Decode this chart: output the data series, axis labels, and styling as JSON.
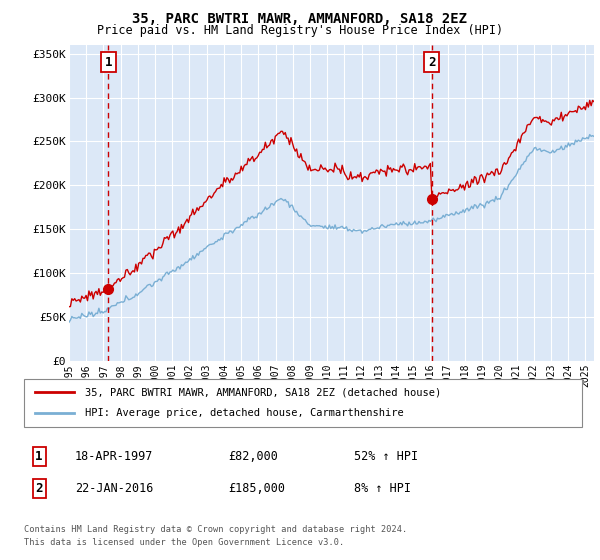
{
  "title": "35, PARC BWTRI MAWR, AMMANFORD, SA18 2EZ",
  "subtitle": "Price paid vs. HM Land Registry's House Price Index (HPI)",
  "ylim": [
    0,
    360000
  ],
  "xlim_start": 1995.0,
  "xlim_end": 2025.5,
  "yticks": [
    0,
    50000,
    100000,
    150000,
    200000,
    250000,
    300000,
    350000
  ],
  "ytick_labels": [
    "£0",
    "£50K",
    "£100K",
    "£150K",
    "£200K",
    "£250K",
    "£300K",
    "£350K"
  ],
  "background_color": "#dce8f7",
  "grid_color": "#ffffff",
  "red_line_color": "#cc0000",
  "blue_line_color": "#7aafd4",
  "sale1_x": 1997.29,
  "sale1_y": 82000,
  "sale1_label": "1",
  "sale1_date": "18-APR-1997",
  "sale1_price": "£82,000",
  "sale1_hpi": "52% ↑ HPI",
  "sale2_x": 2016.06,
  "sale2_y": 185000,
  "sale2_label": "2",
  "sale2_date": "22-JAN-2016",
  "sale2_price": "£185,000",
  "sale2_hpi": "8% ↑ HPI",
  "legend_label_red": "35, PARC BWTRI MAWR, AMMANFORD, SA18 2EZ (detached house)",
  "legend_label_blue": "HPI: Average price, detached house, Carmarthenshire",
  "footer1": "Contains HM Land Registry data © Crown copyright and database right 2024.",
  "footer2": "This data is licensed under the Open Government Licence v3.0."
}
